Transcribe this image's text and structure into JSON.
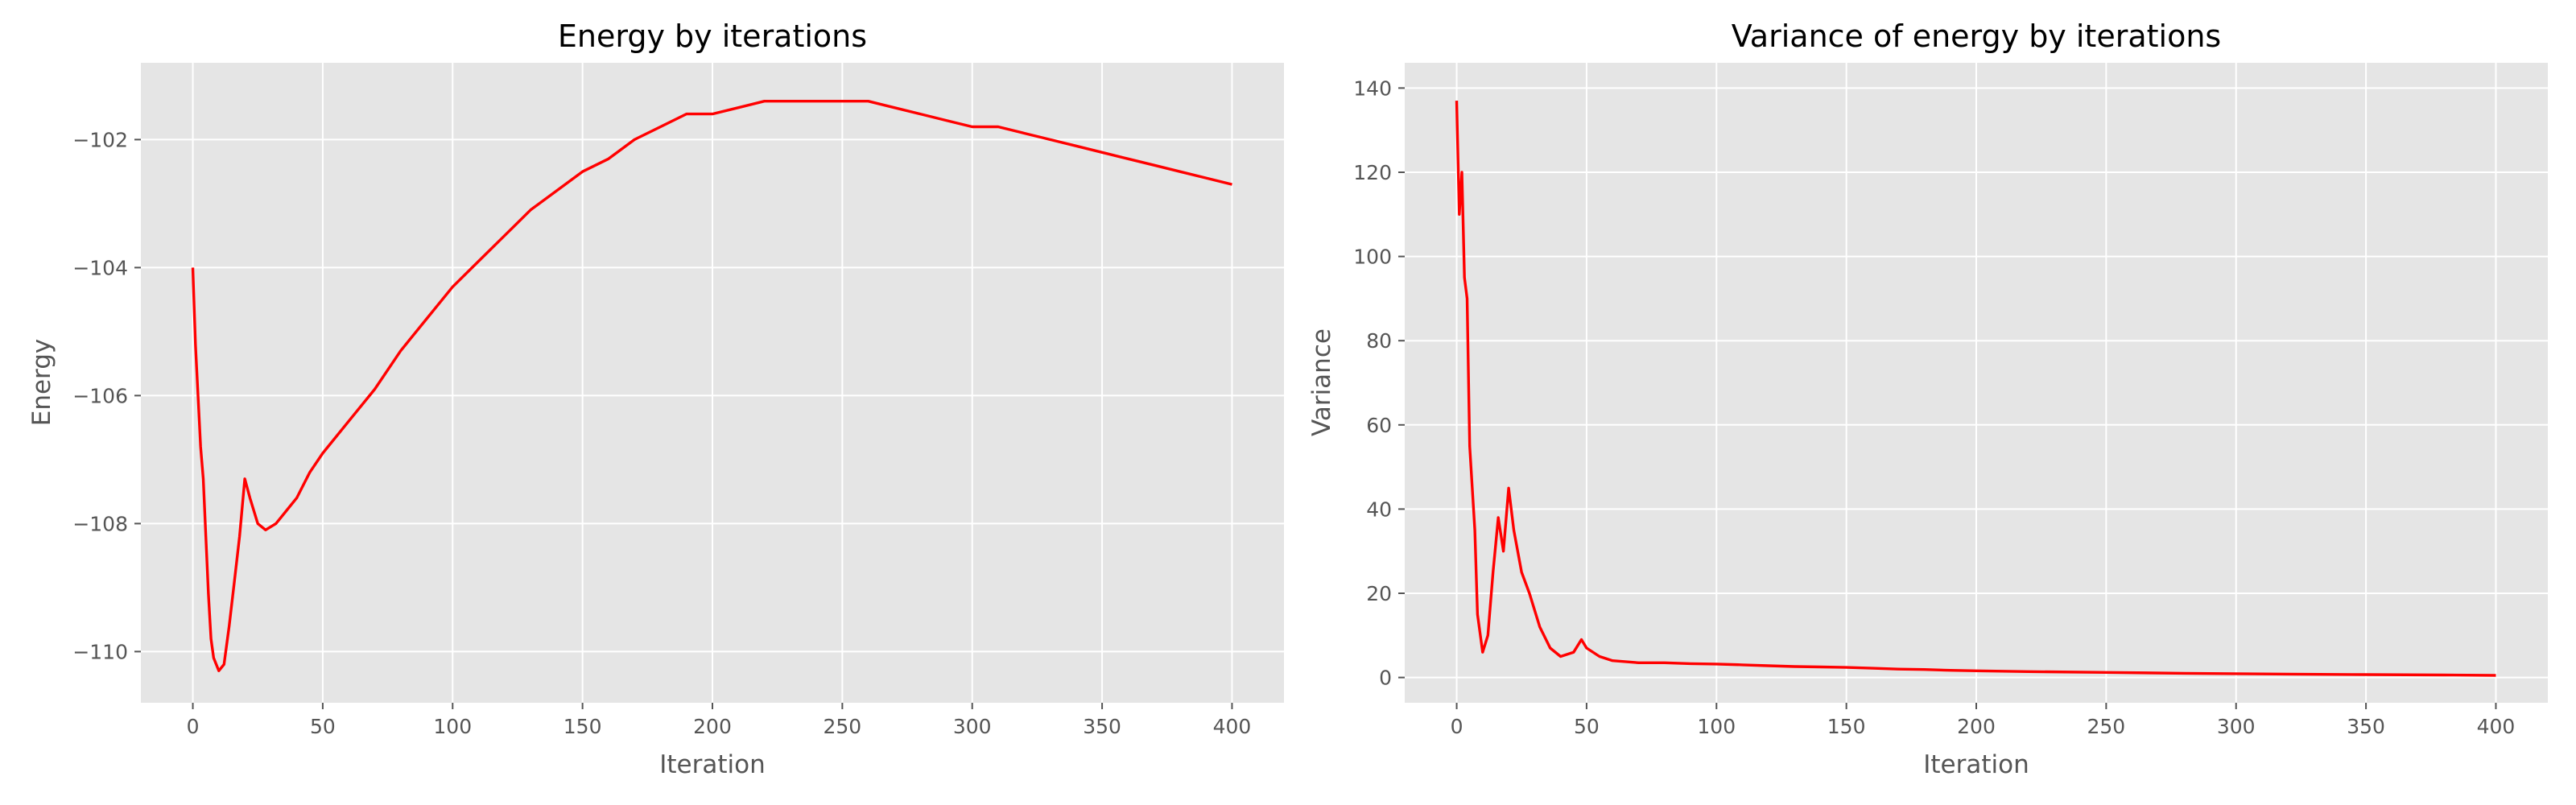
{
  "chart_data": [
    {
      "type": "line",
      "title": "Energy by iterations",
      "xlabel": "Iteration",
      "ylabel": "Energy",
      "xlim": [
        -20,
        420
      ],
      "ylim": [
        -110.8,
        -100.8
      ],
      "xticks": [
        0,
        50,
        100,
        150,
        200,
        250,
        300,
        350,
        400
      ],
      "yticks": [
        -110,
        -108,
        -106,
        -104,
        -102
      ],
      "ytick_labels": [
        "−110",
        "−108",
        "−106",
        "−104",
        "−102"
      ],
      "grid": true,
      "series_color": "#ff0000",
      "background": "#e5e5e5",
      "x": [
        0,
        1,
        2,
        3,
        4,
        5,
        6,
        7,
        8,
        10,
        12,
        14,
        16,
        18,
        20,
        22,
        25,
        28,
        32,
        36,
        40,
        45,
        50,
        60,
        70,
        80,
        90,
        100,
        110,
        120,
        130,
        140,
        150,
        160,
        170,
        180,
        190,
        200,
        210,
        220,
        230,
        240,
        250,
        260,
        270,
        280,
        290,
        300,
        310,
        320,
        330,
        340,
        350,
        360,
        370,
        380,
        390,
        400
      ],
      "y": [
        -104.0,
        -105.2,
        -106.0,
        -106.8,
        -107.3,
        -108.2,
        -109.1,
        -109.8,
        -110.1,
        -110.3,
        -110.2,
        -109.6,
        -108.9,
        -108.2,
        -107.3,
        -107.6,
        -108.0,
        -108.1,
        -108.0,
        -107.8,
        -107.6,
        -107.2,
        -106.9,
        -106.4,
        -105.9,
        -105.3,
        -104.8,
        -104.3,
        -103.9,
        -103.5,
        -103.1,
        -102.8,
        -102.5,
        -102.3,
        -102.0,
        -101.8,
        -101.6,
        -101.6,
        -101.5,
        -101.4,
        -101.4,
        -101.4,
        -101.4,
        -101.4,
        -101.5,
        -101.6,
        -101.7,
        -101.8,
        -101.8,
        -101.9,
        -102.0,
        -102.1,
        -102.2,
        -102.3,
        -102.4,
        -102.5,
        -102.6,
        -102.7
      ]
    },
    {
      "type": "line",
      "title": "Variance of energy by iterations",
      "xlabel": "Iteration",
      "ylabel": "Variance",
      "xlim": [
        -20,
        420
      ],
      "ylim": [
        -6,
        146
      ],
      "xticks": [
        0,
        50,
        100,
        150,
        200,
        250,
        300,
        350,
        400
      ],
      "yticks": [
        0,
        20,
        40,
        60,
        80,
        100,
        120,
        140
      ],
      "ytick_labels": [
        "0",
        "20",
        "40",
        "60",
        "80",
        "100",
        "120",
        "140"
      ],
      "grid": true,
      "series_color": "#ff0000",
      "background": "#e5e5e5",
      "x": [
        0,
        1,
        2,
        3,
        4,
        5,
        6,
        7,
        8,
        10,
        12,
        14,
        16,
        18,
        20,
        22,
        25,
        28,
        32,
        36,
        40,
        45,
        48,
        50,
        55,
        60,
        70,
        80,
        90,
        100,
        110,
        120,
        130,
        140,
        150,
        160,
        170,
        180,
        190,
        200,
        220,
        250,
        280,
        300,
        320,
        350,
        380,
        400
      ],
      "y": [
        137,
        110,
        120,
        95,
        90,
        55,
        45,
        35,
        15,
        6,
        10,
        25,
        38,
        30,
        45,
        35,
        25,
        20,
        12,
        7,
        5,
        6,
        9,
        7,
        5,
        4,
        3.5,
        3.5,
        3.3,
        3.2,
        3.0,
        2.8,
        2.6,
        2.5,
        2.4,
        2.2,
        2.0,
        1.9,
        1.7,
        1.6,
        1.4,
        1.2,
        1.0,
        0.9,
        0.8,
        0.7,
        0.6,
        0.5
      ]
    }
  ]
}
